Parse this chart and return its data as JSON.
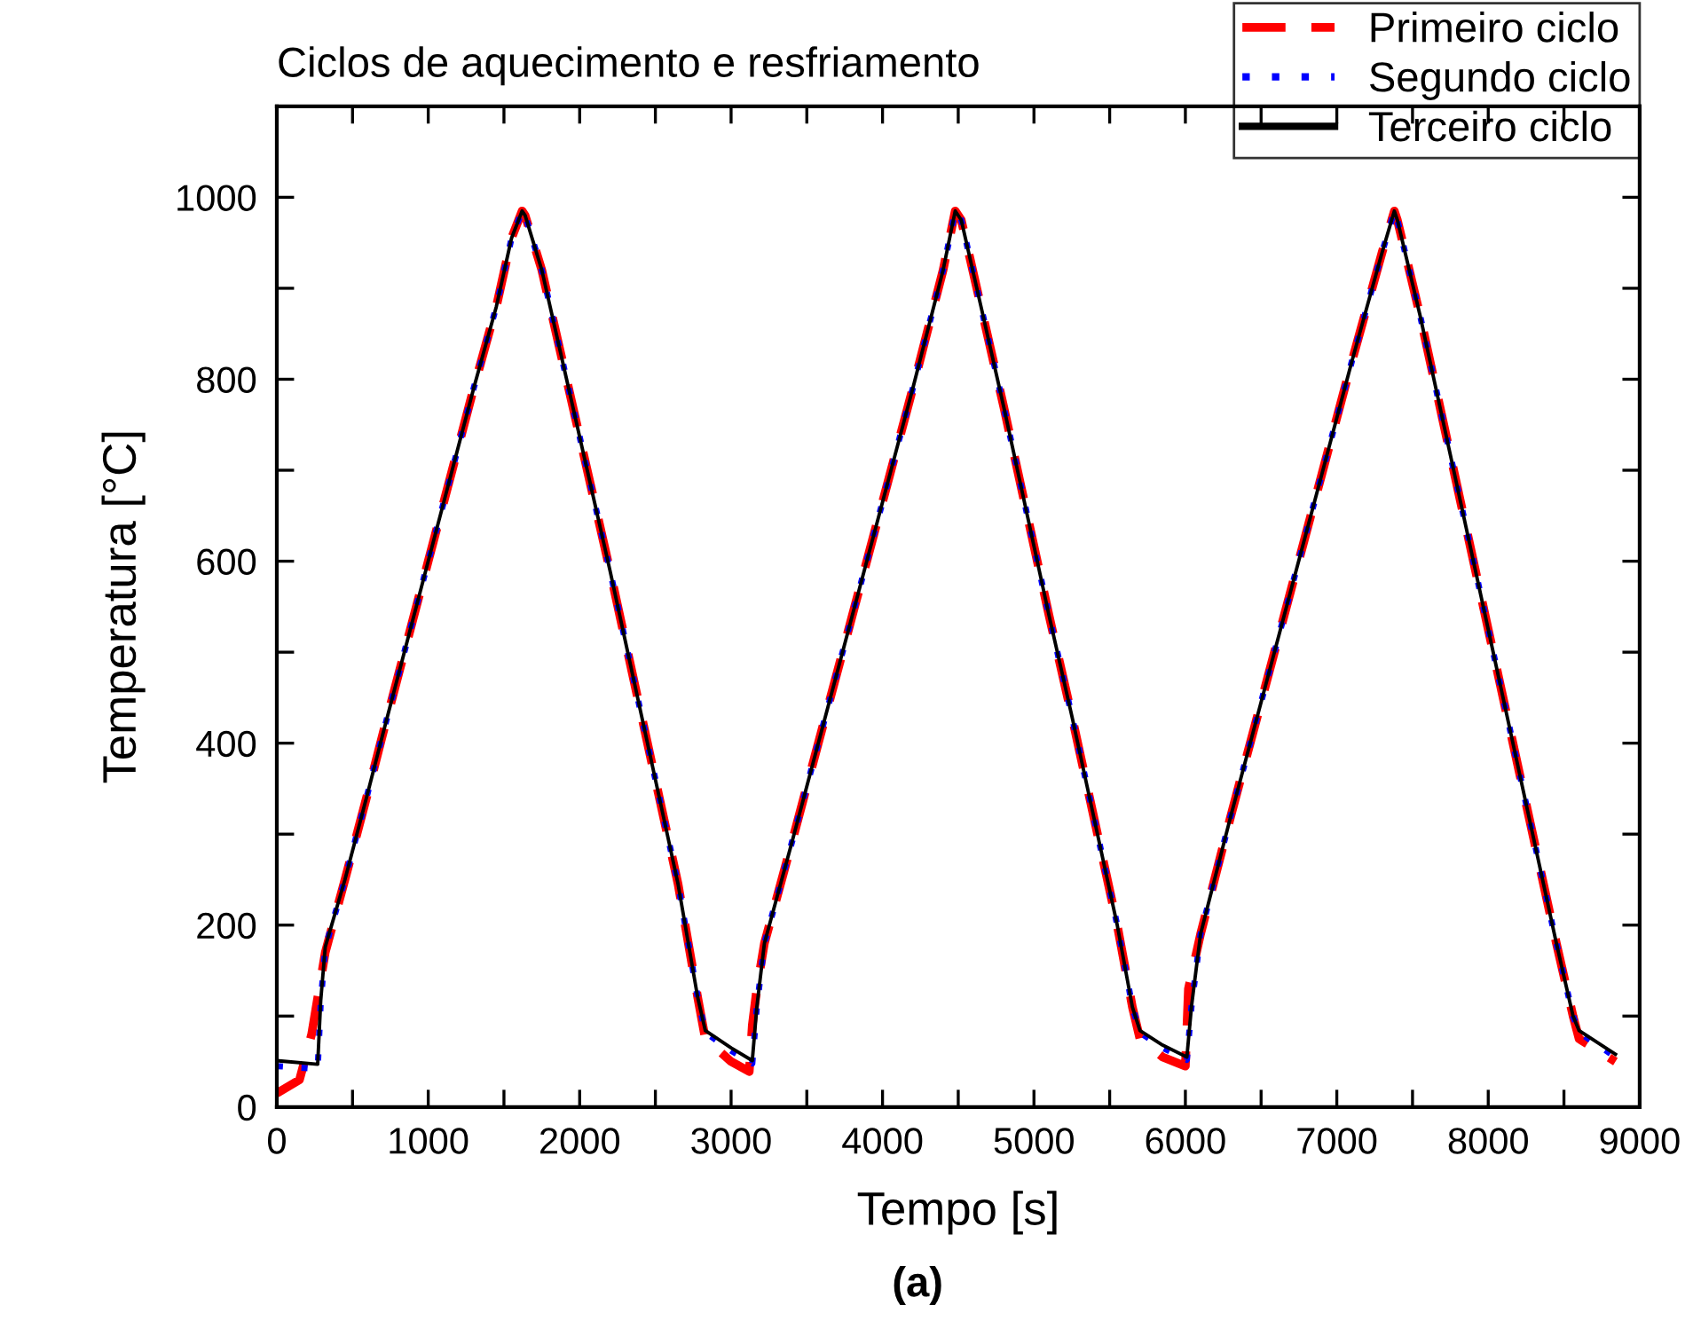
{
  "chart_data": {
    "type": "line",
    "title": "Ciclos de aquecimento e resfriamento",
    "xlabel": "Tempo [s]",
    "ylabel": "Temperatura [°C]",
    "annotations": [
      "(a)"
    ],
    "xlim": [
      0,
      9000
    ],
    "ylim": [
      0,
      1100
    ],
    "xticks": [
      0,
      {
        "value": 500,
        "label": null
      },
      1000,
      {
        "value": 1500,
        "label": null
      },
      2000,
      {
        "value": 2500,
        "label": null
      },
      3000,
      {
        "value": 3500,
        "label": null
      },
      4000,
      {
        "value": 4500,
        "label": null
      },
      5000,
      {
        "value": 5500,
        "label": null
      },
      6000,
      {
        "value": 6500,
        "label": null
      },
      7000,
      {
        "value": 7500,
        "label": null
      },
      8000,
      {
        "value": 8500,
        "label": null
      },
      9000
    ],
    "yticks": [
      0,
      {
        "value": 100,
        "label": null
      },
      200,
      {
        "value": 300,
        "label": null
      },
      400,
      {
        "value": 500,
        "label": null
      },
      600,
      {
        "value": 700,
        "label": null
      },
      800,
      {
        "value": 900,
        "label": null
      },
      1000
    ],
    "grid": false,
    "legend": "top right",
    "x": [
      0,
      270,
      290,
      320,
      450,
      600,
      700,
      850,
      1000,
      1150,
      1300,
      1450,
      1550,
      1620,
      1640,
      1750,
      1900,
      2050,
      2200,
      2350,
      2500,
      2650,
      2780,
      2830,
      3000,
      3140,
      3170,
      3220,
      3400,
      3600,
      3800,
      4000,
      4200,
      4400,
      4480,
      4520,
      4650,
      4800,
      4950,
      5100,
      5250,
      5400,
      5550,
      5650,
      5700,
      5850,
      6010,
      6040,
      6100,
      6300,
      6500,
      6700,
      6900,
      7100,
      7300,
      7380,
      7400,
      7550,
      7700,
      7850,
      8000,
      8150,
      8300,
      8450,
      8560,
      8600,
      8840
    ],
    "series": [
      {
        "name": "Primeiro ciclo",
        "color": "#ff0000",
        "line_style": "dashed",
        "x": [
          0,
          150,
          230,
          280,
          300,
          320,
          450,
          600,
          700,
          850,
          1000,
          1150,
          1300,
          1450,
          1550,
          1620,
          1640,
          1750,
          1900,
          2050,
          2200,
          2350,
          2500,
          2650,
          2780,
          2830,
          3000,
          3120,
          3140,
          3170,
          3220,
          3400,
          3600,
          3800,
          4000,
          4200,
          4400,
          4480,
          4520,
          4650,
          4800,
          4950,
          5100,
          5250,
          5400,
          5550,
          5650,
          5700,
          5850,
          6000,
          6020,
          6100,
          6300,
          6500,
          6700,
          6900,
          7100,
          7300,
          7380,
          7400,
          7550,
          7700,
          7850,
          8000,
          8150,
          8300,
          8450,
          8560,
          8600,
          8840
        ],
        "values": [
          15,
          30,
          80,
          130,
          150,
          170,
          250,
          345,
          410,
          505,
          600,
          695,
          790,
          880,
          955,
          985,
          980,
          920,
          810,
          700,
          590,
          475,
          360,
          245,
          120,
          75,
          50,
          39,
          90,
          130,
          180,
          290,
          415,
          540,
          665,
          790,
          920,
          985,
          975,
          880,
          770,
          655,
          540,
          430,
          315,
          200,
          110,
          75,
          55,
          45,
          130,
          190,
          320,
          445,
          570,
          695,
          820,
          940,
          985,
          975,
          870,
          755,
          640,
          525,
          410,
          295,
          180,
          100,
          75,
          50
        ]
      },
      {
        "name": "Segundo ciclo",
        "color": "#0000ff",
        "line_style": "dotted",
        "values": [
          45,
          42,
          115,
          175,
          250,
          345,
          410,
          505,
          600,
          695,
          790,
          880,
          955,
          985,
          980,
          920,
          810,
          700,
          590,
          475,
          360,
          245,
          120,
          82,
          62,
          48,
          110,
          180,
          290,
          415,
          540,
          665,
          790,
          920,
          985,
          975,
          880,
          770,
          655,
          540,
          430,
          315,
          200,
          110,
          82,
          65,
          52,
          110,
          190,
          320,
          445,
          570,
          695,
          820,
          940,
          985,
          975,
          870,
          755,
          640,
          525,
          410,
          295,
          180,
          100,
          82,
          55
        ]
      },
      {
        "name": "Terceiro ciclo",
        "color": "#000000",
        "line_style": "solid",
        "values": [
          51,
          47,
          117,
          176,
          250,
          345,
          410,
          505,
          600,
          695,
          790,
          880,
          955,
          985,
          980,
          920,
          810,
          700,
          590,
          475,
          360,
          245,
          120,
          84,
          65,
          51,
          110,
          180,
          290,
          415,
          540,
          665,
          790,
          920,
          985,
          975,
          880,
          770,
          655,
          540,
          430,
          315,
          200,
          110,
          84,
          68,
          55,
          110,
          190,
          320,
          445,
          570,
          695,
          820,
          940,
          985,
          975,
          870,
          755,
          640,
          525,
          410,
          295,
          180,
          100,
          84,
          58
        ]
      }
    ]
  }
}
